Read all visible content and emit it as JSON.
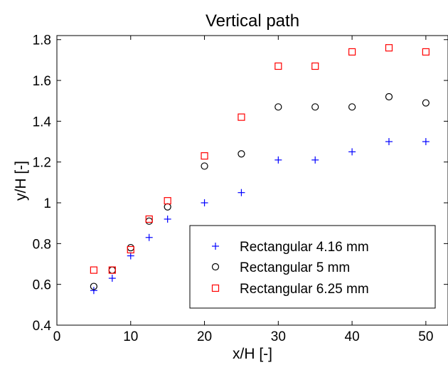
{
  "chart_data": {
    "type": "scatter",
    "title": "Vertical path",
    "xlabel": "x/H [-]",
    "ylabel": "y/H [-]",
    "xlim": [
      0,
      53
    ],
    "ylim": [
      0.4,
      1.82
    ],
    "xticks": [
      0,
      10,
      20,
      30,
      40,
      50
    ],
    "yticks": [
      0.4,
      0.6,
      0.8,
      1,
      1.2,
      1.4,
      1.6,
      1.8
    ],
    "xtick_labels": [
      "0",
      "10",
      "20",
      "30",
      "40",
      "50"
    ],
    "ytick_labels": [
      "0.4",
      "0.6",
      "0.8",
      "1",
      "1.2",
      "1.4",
      "1.6",
      "1.8"
    ],
    "grid": false,
    "legend_position": "lower-right",
    "series": [
      {
        "name": "Rectangular 4.16 mm",
        "marker": "plus",
        "color": "#0000ff",
        "x": [
          5,
          7.5,
          10,
          12.5,
          15,
          20,
          25,
          30,
          35,
          40,
          45,
          50
        ],
        "y": [
          0.57,
          0.63,
          0.74,
          0.83,
          0.92,
          1.0,
          1.05,
          1.21,
          1.21,
          1.25,
          1.3,
          1.3
        ]
      },
      {
        "name": "Rectangular 5 mm",
        "marker": "circle",
        "color": "#000000",
        "x": [
          5,
          7.5,
          10,
          12.5,
          15,
          20,
          25,
          30,
          35,
          40,
          45,
          50
        ],
        "y": [
          0.59,
          0.67,
          0.78,
          0.91,
          0.98,
          1.18,
          1.24,
          1.47,
          1.47,
          1.47,
          1.52,
          1.49
        ]
      },
      {
        "name": "Rectangular 6.25 mm",
        "marker": "square",
        "color": "#ff0000",
        "x": [
          5,
          7.5,
          10,
          12.5,
          15,
          20,
          25,
          30,
          35,
          40,
          45,
          50
        ],
        "y": [
          0.67,
          0.67,
          0.77,
          0.92,
          1.01,
          1.23,
          1.42,
          1.67,
          1.67,
          1.74,
          1.76,
          1.74
        ]
      }
    ]
  }
}
